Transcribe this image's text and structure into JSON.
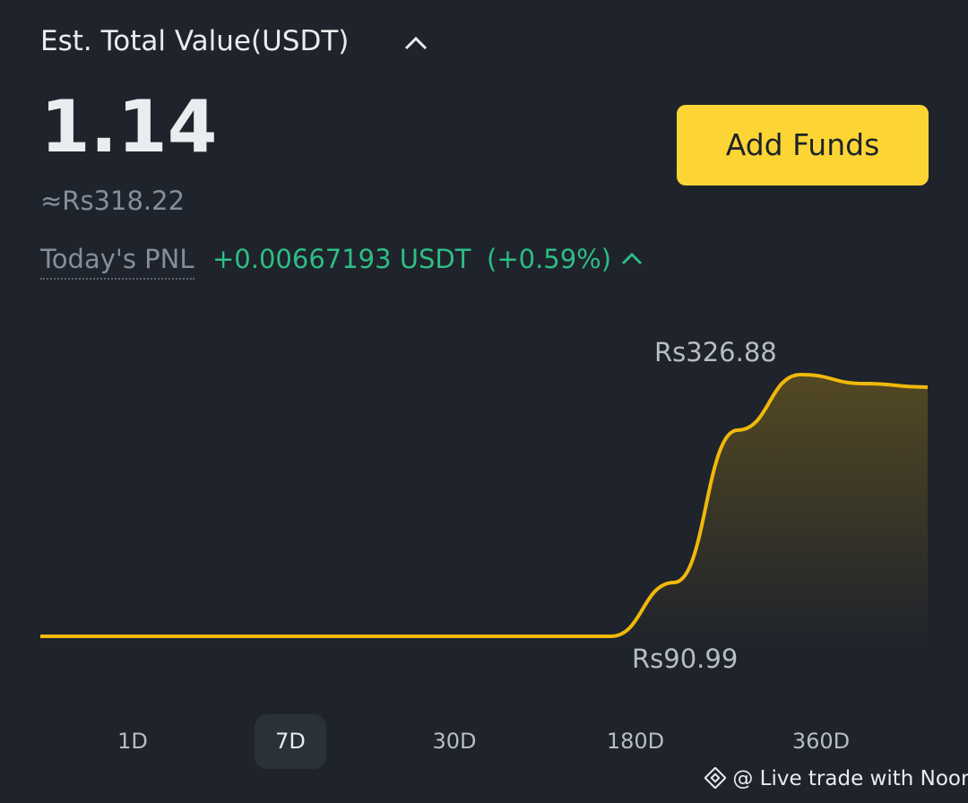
{
  "header": {
    "title": "Est. Total Value(USDT)",
    "total": "1.14",
    "fiat_estimate": "≈Rs318.22"
  },
  "pnl": {
    "label": "Today's PNL",
    "value": "+0.00667193 USDT",
    "percent": "(+0.59%)"
  },
  "button": {
    "label": "Add Funds"
  },
  "chart": {
    "type": "line",
    "color": "#f0b90b",
    "max_label": "Rs326.88",
    "min_label": "Rs90.99",
    "values": [
      90.99,
      90.99,
      90.99,
      90.99,
      90.99,
      90.99,
      90.99,
      90.99,
      90.99,
      90.99,
      139.5,
      276.8,
      326.88,
      318.8,
      315.6
    ]
  },
  "tabs": {
    "items": [
      "1D",
      "7D",
      "30D",
      "180D",
      "360D"
    ],
    "selected_index": 1
  },
  "watermark": "@ Live trade with Noor"
}
